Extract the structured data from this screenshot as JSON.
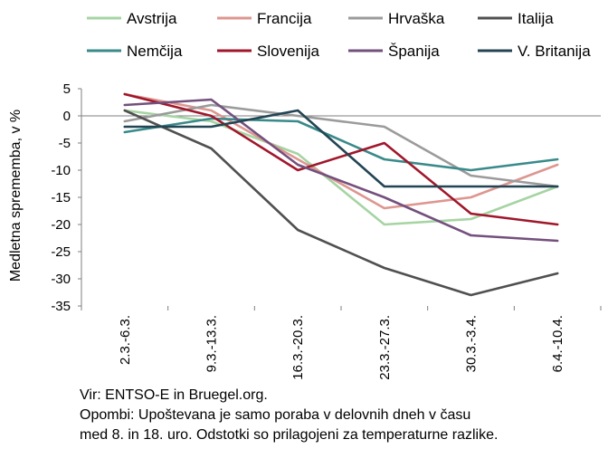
{
  "chart_data": {
    "type": "line",
    "ylabel": "Medletna sprememba, v %",
    "xlabel": "",
    "ylim": [
      -35,
      5
    ],
    "yticks": [
      5,
      0,
      -5,
      -10,
      -15,
      -20,
      -25,
      -30,
      -35
    ],
    "grid": false,
    "legend_position": "top",
    "categories": [
      "2.3.-6.3.",
      "9.3.-13.3.",
      "16.3.-20.3.",
      "23.3.-27.3.",
      "30.3.-3.4.",
      "6.4.-10.4."
    ],
    "series": [
      {
        "name": "Avstrija",
        "color": "#a6d4a3",
        "values": [
          1,
          -1,
          -7,
          -20,
          -19,
          -13
        ]
      },
      {
        "name": "Francija",
        "color": "#dd9690",
        "values": [
          4,
          1,
          -8,
          -17,
          -15,
          -9
        ]
      },
      {
        "name": "Hrvaška",
        "color": "#9b9b9b",
        "values": [
          -1,
          2,
          0,
          -2,
          -11,
          -13
        ]
      },
      {
        "name": "Italija",
        "color": "#505050",
        "values": [
          1,
          -6,
          -21,
          -28,
          -33,
          -29
        ]
      },
      {
        "name": "Nemčija",
        "color": "#3a8a8a",
        "values": [
          -3,
          -0.5,
          -1,
          -8,
          -10,
          -8
        ]
      },
      {
        "name": "Slovenija",
        "color": "#a0172b",
        "values": [
          4,
          0,
          -10,
          -5,
          -18,
          -20
        ]
      },
      {
        "name": "Španija",
        "color": "#73507d",
        "values": [
          2,
          3,
          -9,
          -15,
          -22,
          -23
        ]
      },
      {
        "name": "V. Britanija",
        "color": "#234553",
        "values": [
          -2,
          -2,
          1,
          -13,
          -13,
          -13
        ]
      }
    ]
  },
  "notes": {
    "source": "Vir: ENTSO-E in Bruegel.org.",
    "remark_line1": "Opombi: Upoštevana je samo poraba v delovnih dneh v času",
    "remark_line2": "med 8. in 18. uro. Odstotki so prilagojeni za temperaturne razlike."
  }
}
